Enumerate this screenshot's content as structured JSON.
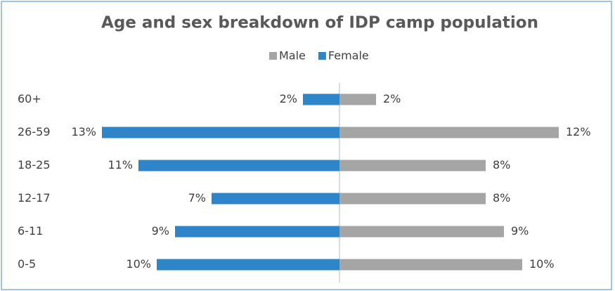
{
  "chart_data": {
    "type": "bar",
    "orientation": "diverging-horizontal",
    "title": "Age and sex breakdown of IDP camp population",
    "categories": [
      "60+",
      "26-59",
      "18-25",
      "12-17",
      "6-11",
      "0-5"
    ],
    "series": [
      {
        "name": "Male",
        "color": "#a5a5a5",
        "side": "right",
        "values": [
          2,
          12,
          8,
          8,
          9,
          10
        ],
        "value_labels": [
          "2%",
          "12%",
          "8%",
          "8%",
          "9%",
          "10%"
        ]
      },
      {
        "name": "Female",
        "color": "#2e86c8",
        "side": "left",
        "values": [
          2,
          13,
          11,
          7,
          9,
          10
        ],
        "value_labels": [
          "2%",
          "13%",
          "11%",
          "7%",
          "9%",
          "10%"
        ]
      }
    ],
    "legend": "top"
  }
}
